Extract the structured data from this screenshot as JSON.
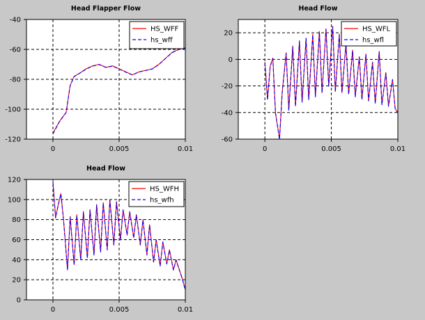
{
  "chart_data": [
    {
      "type": "line",
      "title": "Head Flapper Flow",
      "xlim": [
        -0.002,
        0.01
      ],
      "ylim": [
        -120,
        -40
      ],
      "xticks": [
        0,
        0.005,
        0.01
      ],
      "xtick_labels": [
        "0",
        "0.005",
        "0.01"
      ],
      "yticks": [
        -120,
        -100,
        -80,
        -60,
        -40
      ],
      "ytick_labels": [
        "-120",
        "-100",
        "-80",
        "-60",
        "-40"
      ],
      "grid": true,
      "legend_position": "top-right",
      "x": [
        0,
        0.0005,
        0.001,
        0.0013,
        0.0016,
        0.002,
        0.0025,
        0.003,
        0.0035,
        0.004,
        0.0045,
        0.005,
        0.0055,
        0.006,
        0.0065,
        0.007,
        0.0075,
        0.008,
        0.0085,
        0.009,
        0.0095,
        0.01
      ],
      "series": [
        {
          "name": "HS_WFF",
          "color": "#ff0000",
          "dash": "solid",
          "values": [
            -116,
            -108,
            -102,
            -84,
            -78,
            -76,
            -73,
            -71,
            -70,
            -72,
            -71,
            -73,
            -75,
            -77,
            -75,
            -74,
            -73,
            -70,
            -66,
            -62,
            -60,
            -59
          ]
        },
        {
          "name": "hs_wff",
          "color": "#0000ff",
          "dash": "dashed",
          "values": [
            -116.5,
            -108.3,
            -102.2,
            -84.3,
            -78.2,
            -76.1,
            -73.2,
            -71.1,
            -70.2,
            -72.1,
            -71.2,
            -73.1,
            -75.2,
            -77.1,
            -75.1,
            -74.2,
            -73.1,
            -70.2,
            -66.1,
            -62.2,
            -60.1,
            -59.2
          ]
        }
      ]
    },
    {
      "type": "line",
      "title": "Head  Flow",
      "xlim": [
        -0.002,
        0.01
      ],
      "ylim": [
        -60,
        30
      ],
      "xticks": [
        0,
        0.005,
        0.01
      ],
      "xtick_labels": [
        "0",
        "0.005",
        "0.01"
      ],
      "yticks": [
        -60,
        -40,
        -20,
        0,
        20
      ],
      "ytick_labels": [
        "-60",
        "-40",
        "-20",
        "0",
        "20"
      ],
      "grid": true,
      "legend_position": "top-right",
      "x": [
        0,
        0.0002,
        0.0004,
        0.0006,
        0.0008,
        0.0011,
        0.0013,
        0.0016,
        0.0018,
        0.0021,
        0.0023,
        0.0026,
        0.0028,
        0.0031,
        0.0033,
        0.0036,
        0.0038,
        0.0041,
        0.0043,
        0.0046,
        0.0048,
        0.0051,
        0.0053,
        0.0056,
        0.0058,
        0.0061,
        0.0063,
        0.0066,
        0.0068,
        0.0071,
        0.0073,
        0.0076,
        0.0078,
        0.0081,
        0.0083,
        0.0086,
        0.0088,
        0.0091,
        0.0093,
        0.0096,
        0.0098,
        0.01
      ],
      "series": [
        {
          "name": "HS_WFL",
          "color": "#ff0000",
          "dash": "solid",
          "values": [
            -2,
            -30,
            -5,
            1,
            -40,
            -60,
            -25,
            5,
            -38,
            10,
            -35,
            14,
            -32,
            16,
            -30,
            19,
            -28,
            21,
            -25,
            23,
            -20,
            25,
            -24,
            19,
            -25,
            12,
            -26,
            7,
            -28,
            2,
            -30,
            4,
            -31,
            -2,
            -33,
            6,
            -34,
            -10,
            -35,
            -15,
            -37,
            -40
          ]
        },
        {
          "name": "hs_wfl",
          "color": "#0000ff",
          "dash": "dashed",
          "values": [
            -2.5,
            -30.5,
            -5.4,
            0.6,
            -40.4,
            -60.2,
            -25.3,
            4.6,
            -38.3,
            9.6,
            -35.4,
            13.6,
            -32.3,
            15.7,
            -30.4,
            18.6,
            -28.3,
            20.6,
            -25.4,
            22.7,
            -20.3,
            24.6,
            -24.4,
            18.6,
            -25.3,
            11.7,
            -26.4,
            6.6,
            -28.3,
            1.7,
            -30.4,
            3.6,
            -31.3,
            -2.4,
            -33.3,
            5.6,
            -34.4,
            -10.3,
            -35.4,
            -15.3,
            -37.4,
            -40.3
          ]
        }
      ]
    },
    {
      "type": "line",
      "title": "Head Flow",
      "xlim": [
        -0.002,
        0.01
      ],
      "ylim": [
        0,
        120
      ],
      "xticks": [
        0,
        0.005,
        0.01
      ],
      "xtick_labels": [
        "0",
        "0.005",
        "0.01"
      ],
      "yticks": [
        0,
        20,
        40,
        60,
        80,
        100,
        120
      ],
      "ytick_labels": [
        "0",
        "20",
        "40",
        "60",
        "80",
        "100",
        "120"
      ],
      "grid": true,
      "legend_position": "top-right",
      "x": [
        0,
        0.0002,
        0.0004,
        0.0006,
        0.0008,
        0.0011,
        0.0013,
        0.0016,
        0.0018,
        0.0021,
        0.0023,
        0.0026,
        0.0028,
        0.0031,
        0.0033,
        0.0036,
        0.0038,
        0.0041,
        0.0043,
        0.0046,
        0.0048,
        0.0051,
        0.0053,
        0.0056,
        0.0058,
        0.0061,
        0.0063,
        0.0066,
        0.0068,
        0.0071,
        0.0073,
        0.0076,
        0.0078,
        0.0081,
        0.0083,
        0.0086,
        0.0088,
        0.0091,
        0.0093,
        0.0096,
        0.0098,
        0.01
      ],
      "series": [
        {
          "name": "HS_WFH",
          "color": "#ff0000",
          "dash": "solid",
          "values": [
            118,
            82,
            95,
            106,
            80,
            30,
            83,
            35,
            85,
            40,
            88,
            42,
            90,
            45,
            95,
            48,
            97,
            50,
            100,
            55,
            98,
            60,
            90,
            65,
            88,
            62,
            85,
            55,
            80,
            45,
            75,
            38,
            60,
            34,
            58,
            36,
            50,
            30,
            40,
            28,
            20,
            10
          ]
        },
        {
          "name": "hs_wfh",
          "color": "#0000ff",
          "dash": "dashed",
          "values": [
            117.4,
            81.6,
            94.4,
            105.6,
            79.5,
            29.6,
            82.5,
            34.6,
            84.4,
            39.6,
            87.5,
            41.6,
            89.4,
            44.6,
            94.5,
            47.6,
            96.4,
            49.6,
            99.5,
            54.6,
            97.4,
            59.6,
            89.5,
            64.6,
            87.4,
            61.6,
            84.5,
            54.6,
            79.4,
            44.6,
            74.5,
            37.6,
            59.4,
            33.6,
            57.5,
            35.6,
            49.4,
            29.6,
            39.5,
            27.6,
            19.4,
            9.6
          ]
        }
      ]
    }
  ]
}
